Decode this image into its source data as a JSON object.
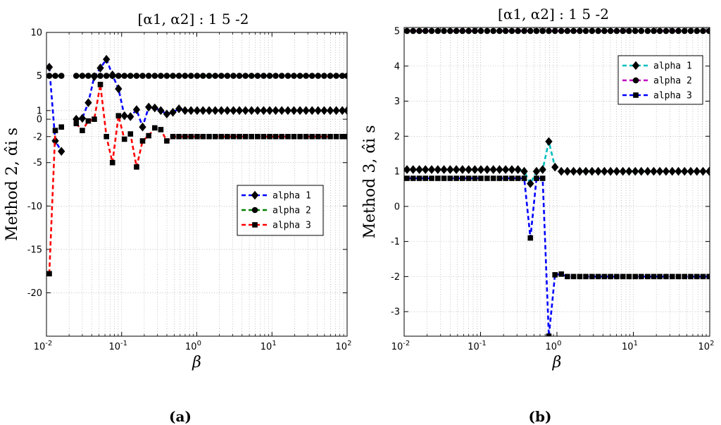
{
  "chart_data": [
    {
      "type": "line",
      "title": "[α1, α2] : 1 5 -2",
      "xlabel": "β",
      "ylabel": "Method 2, α̂i s",
      "xscale": "log",
      "xlim": [
        0.01,
        100
      ],
      "ylim": [
        -25,
        10
      ],
      "xticks": [
        "10^-2",
        "10^-1",
        "10^0",
        "10^1",
        "10^2"
      ],
      "yticks": [
        -20,
        -15,
        -10,
        -5,
        -2,
        0,
        1,
        5,
        10
      ],
      "grid": true,
      "legend_position": "center-right",
      "panel_label": "(a)",
      "series": [
        {
          "name": "alpha 1",
          "color": "#0000ff",
          "marker": "diamond",
          "segments": [
            {
              "x": [
                0.0109,
                0.0131,
                0.0158
              ],
              "y": [
                6,
                -2.5,
                -3.7
              ]
            },
            {
              "x": [
                0.0249,
                0.03,
                0.036,
                0.0433,
                0.0521,
                0.0628,
                0.0755,
                0.0909,
                0.109,
                0.131,
                0.158,
                0.19,
                0.229,
                0.276,
                0.332,
                0.399,
                0.481,
                0.579,
                0.697,
                0.838,
                1.01,
                1.21,
                1.46,
                1.76,
                2.12,
                2.55,
                3.07,
                3.69,
                4.44,
                5.35,
                6.44,
                7.75,
                9.33,
                11.2,
                13.5,
                16.3,
                19.6,
                23.6,
                28.4,
                34.2,
                41.1,
                49.5,
                59.6,
                71.7,
                86.3,
                100
              ],
              "y": [
                0,
                0.1,
                1.9,
                4.9,
                5.9,
                6.9,
                5.1,
                3.5,
                0.4,
                0.3,
                1.1,
                -0.9,
                1.4,
                1.3,
                1,
                0.6,
                0.8,
                1.2,
                1,
                1,
                1,
                1,
                1,
                1,
                1,
                1,
                1,
                1,
                1,
                1,
                1,
                1,
                1,
                1,
                1,
                1,
                1,
                1,
                1,
                1,
                1,
                1,
                1,
                1,
                1,
                1
              ]
            }
          ]
        },
        {
          "name": "alpha 2",
          "color": "#008000",
          "marker": "circle",
          "segments": [
            {
              "x": [
                0.0109,
                0.0131,
                0.0158
              ],
              "y": [
                5,
                5,
                5
              ]
            },
            {
              "x": [
                0.0249,
                0.03,
                0.036,
                0.0433,
                0.0521,
                0.0628,
                0.0755,
                0.0909,
                0.109,
                0.131,
                0.158,
                0.19,
                0.229,
                0.276,
                0.332,
                0.399,
                0.481,
                0.579,
                0.697,
                0.838,
                1.01,
                1.21,
                1.46,
                1.76,
                2.12,
                2.55,
                3.07,
                3.69,
                4.44,
                5.35,
                6.44,
                7.75,
                9.33,
                11.2,
                13.5,
                16.3,
                19.6,
                23.6,
                28.4,
                34.2,
                41.1,
                49.5,
                59.6,
                71.7,
                86.3,
                100
              ],
              "y": [
                5,
                5,
                5,
                5,
                5,
                5,
                5,
                5,
                5,
                5,
                5,
                5,
                5,
                5,
                5,
                5,
                5,
                5,
                5,
                5,
                5,
                5,
                5,
                5,
                5,
                5,
                5,
                5,
                5,
                5,
                5,
                5,
                5,
                5,
                5,
                5,
                5,
                5,
                5,
                5,
                5,
                5,
                5,
                5,
                5,
                5
              ]
            }
          ]
        },
        {
          "name": "alpha 3",
          "color": "#ff0000",
          "marker": "square",
          "segments": [
            {
              "x": [
                0.0109,
                0.0131,
                0.0158
              ],
              "y": [
                -17.8,
                -1.3,
                -0.9
              ]
            },
            {
              "x": [
                0.0249,
                0.03,
                0.036,
                0.0433,
                0.0521,
                0.0628,
                0.0755,
                0.0909,
                0.109,
                0.131,
                0.158,
                0.19,
                0.229,
                0.276,
                0.332,
                0.399,
                0.481,
                0.579,
                0.697,
                0.838,
                1.01,
                1.21,
                1.46,
                1.76,
                2.12,
                2.55,
                3.07,
                3.69,
                4.44,
                5.35,
                6.44,
                7.75,
                9.33,
                11.2,
                13.5,
                16.3,
                19.6,
                23.6,
                28.4,
                34.2,
                41.1,
                49.5,
                59.6,
                71.7,
                86.3,
                100
              ],
              "y": [
                -0.5,
                -1.3,
                -0.2,
                0,
                4,
                -2,
                -5,
                0.4,
                -2.3,
                -1.7,
                -5.5,
                -2.5,
                -1.9,
                -1,
                -1.2,
                -2.5,
                -2,
                -2,
                -2,
                -2,
                -2,
                -2,
                -2,
                -2,
                -2,
                -2,
                -2,
                -2,
                -2,
                -2,
                -2,
                -2,
                -2,
                -2,
                -2,
                -2,
                -2,
                -2,
                -2,
                -2,
                -2,
                -2,
                -2,
                -2,
                -2,
                -2
              ]
            }
          ]
        }
      ]
    },
    {
      "type": "line",
      "title": "[α1, α2] : 1 5 -2",
      "xlabel": "β",
      "ylabel": "Method 3, α̂i s",
      "xscale": "log",
      "xlim": [
        0.01,
        100
      ],
      "ylim": [
        -3.7,
        5.1
      ],
      "xticks": [
        "10^-2",
        "10^-1",
        "10^0",
        "10^1",
        "10^2"
      ],
      "yticks": [
        -3,
        -2,
        -1,
        0,
        1,
        2,
        3,
        4,
        5
      ],
      "grid": true,
      "legend_position": "top-right",
      "panel_label": "(b)",
      "series": [
        {
          "name": "alpha 1",
          "color": "#00bfbf",
          "marker": "diamond",
          "segments": [
            {
              "x": [
                0.0109,
                0.0131,
                0.0158,
                0.019,
                0.0229,
                0.0276,
                0.0332,
                0.04,
                0.0482,
                0.058,
                0.0699,
                0.0842,
                0.101,
                0.122,
                0.147,
                0.177,
                0.213,
                0.257,
                0.309,
                0.373,
                0.449,
                0.54,
                0.65,
                0.783,
                0.943,
                1.14,
                1.37,
                1.65,
                1.99,
                2.39,
                2.88,
                3.47,
                4.18,
                5.03,
                6.06,
                7.3,
                8.79,
                10.6,
                12.7,
                15.4,
                18.5,
                22.2,
                26.8,
                32.3,
                38.9,
                46.8,
                56.4,
                67.9,
                81.7,
                98.4
              ],
              "y": [
                1.05,
                1.05,
                1.05,
                1.05,
                1.05,
                1.05,
                1.05,
                1.05,
                1.05,
                1.05,
                1.05,
                1.05,
                1.05,
                1.05,
                1.05,
                1.05,
                1.05,
                1.05,
                1.05,
                1,
                0.65,
                1,
                1.05,
                1.85,
                1.12,
                1,
                1,
                1,
                1,
                1,
                1,
                1,
                1,
                1,
                1,
                1,
                1,
                1,
                1,
                1,
                1,
                1,
                1,
                1,
                1,
                1,
                1,
                1,
                1,
                1
              ]
            }
          ]
        },
        {
          "name": "alpha 2",
          "color": "#bf00bf",
          "marker": "circle",
          "segments": [
            {
              "x": [
                0.0109,
                0.0131,
                0.0158,
                0.019,
                0.0229,
                0.0276,
                0.0332,
                0.04,
                0.0482,
                0.058,
                0.0699,
                0.0842,
                0.101,
                0.122,
                0.147,
                0.177,
                0.213,
                0.257,
                0.309,
                0.373,
                0.449,
                0.54,
                0.65,
                0.783,
                0.943,
                1.14,
                1.37,
                1.65,
                1.99,
                2.39,
                2.88,
                3.47,
                4.18,
                5.03,
                6.06,
                7.3,
                8.79,
                10.6,
                12.7,
                15.4,
                18.5,
                22.2,
                26.8,
                32.3,
                38.9,
                46.8,
                56.4,
                67.9,
                81.7,
                98.4
              ],
              "y": [
                5,
                5,
                5,
                5,
                5,
                5,
                5,
                5,
                5,
                5,
                5,
                5,
                5,
                5,
                5,
                5,
                5,
                5,
                5,
                5,
                5,
                5,
                5,
                5,
                5,
                5,
                5,
                5,
                5,
                5,
                5,
                5,
                5,
                5,
                5,
                5,
                5,
                5,
                5,
                5,
                5,
                5,
                5,
                5,
                5,
                5,
                5,
                5,
                5,
                5
              ]
            }
          ]
        },
        {
          "name": "alpha 3",
          "color": "#0000ff",
          "marker": "square",
          "segments": [
            {
              "x": [
                0.0109,
                0.0131,
                0.0158,
                0.019,
                0.0229,
                0.0276,
                0.0332,
                0.04,
                0.0482,
                0.058,
                0.0699,
                0.0842,
                0.101,
                0.122,
                0.147,
                0.177,
                0.213,
                0.257,
                0.309,
                0.373,
                0.449,
                0.54,
                0.65,
                0.783,
                0.943,
                1.14,
                1.37,
                1.65,
                1.99,
                2.39,
                2.88,
                3.47,
                4.18,
                5.03,
                6.06,
                7.3,
                8.79,
                10.6,
                12.7,
                15.4,
                18.5,
                22.2,
                26.8,
                32.3,
                38.9,
                46.8,
                56.4,
                67.9,
                81.7,
                98.4
              ],
              "y": [
                0.8,
                0.8,
                0.8,
                0.8,
                0.8,
                0.8,
                0.8,
                0.8,
                0.8,
                0.8,
                0.8,
                0.8,
                0.8,
                0.8,
                0.8,
                0.8,
                0.8,
                0.8,
                0.8,
                0.8,
                -0.9,
                0.8,
                0.8,
                -3.7,
                -1.95,
                -1.93,
                -2,
                -2,
                -2,
                -2,
                -2,
                -2,
                -2,
                -2,
                -2,
                -2,
                -2,
                -2,
                -2,
                -2,
                -2,
                -2,
                -2,
                -2,
                -2,
                -2,
                -2,
                -2,
                -2,
                -2
              ]
            }
          ]
        }
      ]
    }
  ]
}
